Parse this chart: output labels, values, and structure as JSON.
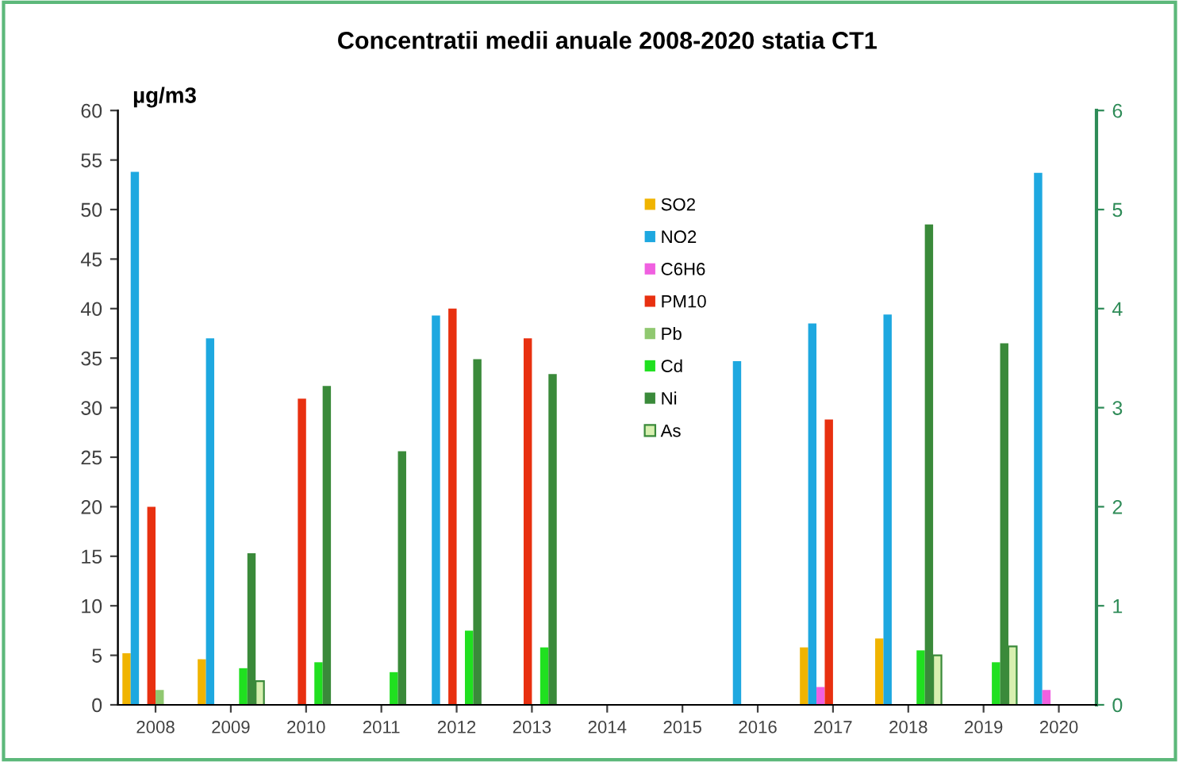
{
  "chart_data": {
    "type": "bar",
    "title": "Concentratii medii anuale 2008-2020 statia CT1",
    "ylabel": "µg/m3",
    "categories": [
      "2008",
      "2009",
      "2010",
      "2011",
      "2012",
      "2013",
      "2014",
      "2015",
      "2016",
      "2017",
      "2018",
      "2019",
      "2020"
    ],
    "series": [
      {
        "name": "SO2",
        "color": "#f0b400",
        "values": [
          5.2,
          4.6,
          null,
          null,
          null,
          null,
          null,
          null,
          null,
          5.8,
          6.7,
          null,
          null
        ]
      },
      {
        "name": "NO2",
        "color": "#1ea8e0",
        "values": [
          53.8,
          37,
          null,
          null,
          39.3,
          null,
          null,
          null,
          34.7,
          38.5,
          39.4,
          null,
          53.7
        ]
      },
      {
        "name": "C6H6",
        "color": "#f060e0",
        "values": [
          null,
          null,
          null,
          null,
          null,
          null,
          null,
          null,
          null,
          1.8,
          null,
          null,
          1.5
        ]
      },
      {
        "name": "PM10",
        "color": "#e83010",
        "values": [
          20,
          null,
          30.9,
          null,
          40,
          37,
          null,
          null,
          null,
          28.8,
          null,
          null,
          null
        ]
      },
      {
        "name": "Pb",
        "color": "#90c870",
        "values": [
          1.5,
          null,
          null,
          null,
          null,
          null,
          null,
          null,
          null,
          null,
          null,
          null,
          null
        ]
      },
      {
        "name": "Cd",
        "color": "#20e020",
        "values": [
          null,
          3.7,
          4.3,
          3.3,
          7.5,
          5.8,
          null,
          null,
          null,
          null,
          5.5,
          4.3,
          null
        ]
      },
      {
        "name": "Ni",
        "color": "#3a8a3a",
        "values": [
          null,
          15.3,
          32.2,
          25.6,
          34.9,
          33.4,
          null,
          null,
          null,
          null,
          48.5,
          36.5,
          null
        ]
      },
      {
        "name": "As",
        "color": "#d8f0b0",
        "values": [
          null,
          2.4,
          null,
          null,
          null,
          null,
          null,
          null,
          null,
          null,
          5,
          5.9,
          null
        ]
      }
    ],
    "ylim": [
      0,
      60
    ],
    "yticks": [
      0,
      5,
      10,
      15,
      20,
      25,
      30,
      35,
      40,
      45,
      50,
      55,
      60
    ],
    "y2lim": [
      0,
      6
    ],
    "y2ticks": [
      0,
      1,
      2,
      3,
      4,
      5,
      6
    ],
    "grid": false,
    "legend": "top"
  }
}
